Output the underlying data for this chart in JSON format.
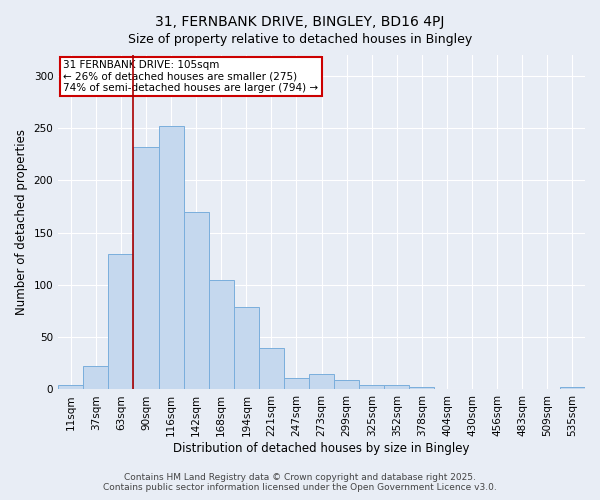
{
  "title1": "31, FERNBANK DRIVE, BINGLEY, BD16 4PJ",
  "title2": "Size of property relative to detached houses in Bingley",
  "xlabel": "Distribution of detached houses by size in Bingley",
  "ylabel": "Number of detached properties",
  "categories": [
    "11sqm",
    "37sqm",
    "63sqm",
    "90sqm",
    "116sqm",
    "142sqm",
    "168sqm",
    "194sqm",
    "221sqm",
    "247sqm",
    "273sqm",
    "299sqm",
    "325sqm",
    "352sqm",
    "378sqm",
    "404sqm",
    "430sqm",
    "456sqm",
    "483sqm",
    "509sqm",
    "535sqm"
  ],
  "values": [
    4,
    22,
    130,
    232,
    252,
    170,
    105,
    79,
    40,
    11,
    15,
    9,
    4,
    4,
    2,
    0,
    0,
    0,
    0,
    0,
    2
  ],
  "bar_color": "#c5d8ee",
  "bar_edge_color": "#7aaedc",
  "highlight_color": "#aa0000",
  "vline_x_index": 3.0,
  "annotation_line1": "31 FERNBANK DRIVE: 105sqm",
  "annotation_line2": "← 26% of detached houses are smaller (275)",
  "annotation_line3": "74% of semi-detached houses are larger (794) →",
  "annotation_box_color": "#ffffff",
  "annotation_box_edge": "#cc0000",
  "ylim": [
    0,
    320
  ],
  "yticks": [
    0,
    50,
    100,
    150,
    200,
    250,
    300
  ],
  "background_color": "#e8edf5",
  "grid_color": "#ffffff",
  "footer1": "Contains HM Land Registry data © Crown copyright and database right 2025.",
  "footer2": "Contains public sector information licensed under the Open Government Licence v3.0.",
  "title1_fontsize": 10,
  "title2_fontsize": 9,
  "xlabel_fontsize": 8.5,
  "ylabel_fontsize": 8.5,
  "tick_fontsize": 7.5,
  "annotation_fontsize": 7.5,
  "footer_fontsize": 6.5
}
